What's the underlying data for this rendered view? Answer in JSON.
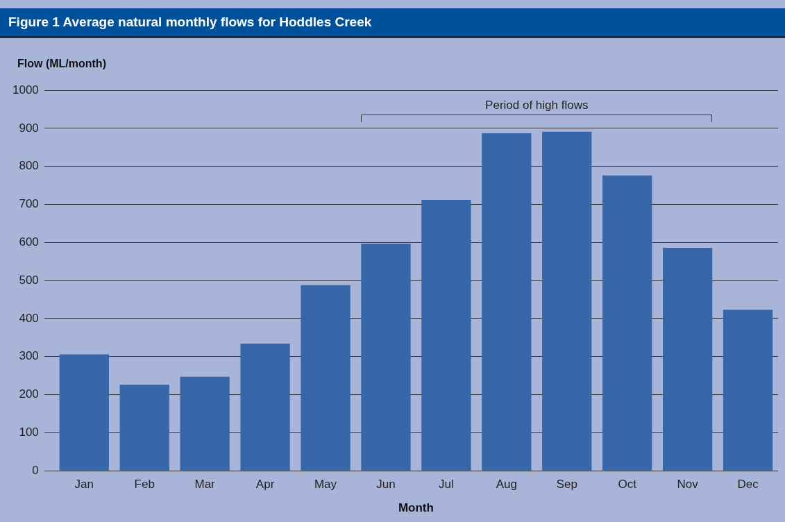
{
  "chart_data": {
    "type": "bar",
    "title": "Figure 1 Average natural monthly flows for Hoddles Creek",
    "ylabel": "Flow (ML/month)",
    "xlabel": "Month",
    "categories": [
      "Jan",
      "Feb",
      "Mar",
      "Apr",
      "May",
      "Jun",
      "Jul",
      "Aug",
      "Sep",
      "Oct",
      "Nov",
      "Dec"
    ],
    "values": [
      306,
      226,
      247,
      334,
      488,
      597,
      712,
      887,
      891,
      776,
      586,
      423
    ],
    "color": "#3567a9",
    "ylim": [
      0,
      1000
    ],
    "yticks": [
      0,
      100,
      200,
      300,
      400,
      500,
      600,
      700,
      800,
      900,
      1000
    ],
    "grid": "y",
    "annotations": [
      "Period of high flows"
    ]
  }
}
